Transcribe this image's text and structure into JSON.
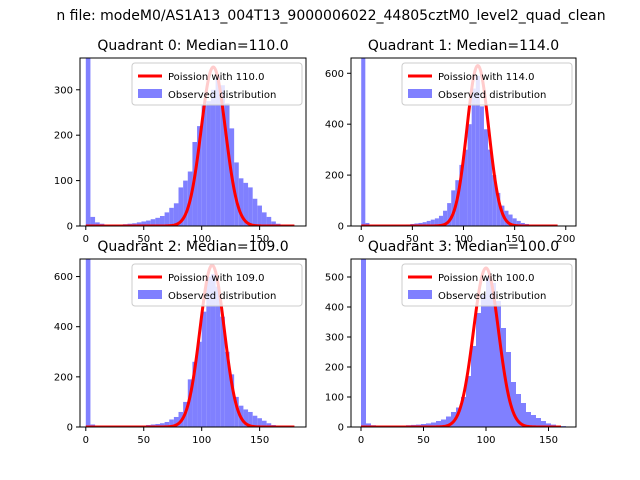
{
  "figure": {
    "suptitle": "n file: modeM0/AS1A13_004T13_9000006022_44805cztM0_level2_quad_clean"
  },
  "colors": {
    "poisson_line": "#ff0000",
    "histogram": "#8080ff",
    "axes": "#000000",
    "legend_border": "#cccccc"
  },
  "chart_data": [
    {
      "type": "bar",
      "title": "Quadrant 0: Median=110.0",
      "legend": [
        "Poission with 110.0",
        "Observed distribution"
      ],
      "legend_position": "top-right",
      "xlim": [
        -5,
        190
      ],
      "ylim": [
        0,
        370
      ],
      "xticks": [
        0,
        50,
        100,
        150
      ],
      "yticks": [
        0,
        100,
        200,
        300
      ],
      "poisson_mean": 110.0,
      "poisson_peak": 350,
      "hist_x": [
        0,
        4,
        8,
        12,
        16,
        20,
        24,
        28,
        32,
        36,
        40,
        44,
        48,
        52,
        56,
        60,
        64,
        68,
        72,
        76,
        80,
        84,
        88,
        92,
        96,
        100,
        104,
        108,
        112,
        116,
        120,
        124,
        128,
        132,
        136,
        140,
        144,
        148,
        152,
        156,
        160,
        164,
        168,
        172,
        176,
        180
      ],
      "hist_y": [
        370,
        20,
        8,
        5,
        3,
        3,
        3,
        3,
        4,
        5,
        6,
        8,
        10,
        12,
        15,
        18,
        22,
        30,
        40,
        50,
        85,
        100,
        120,
        185,
        220,
        265,
        275,
        300,
        330,
        310,
        270,
        215,
        140,
        105,
        95,
        85,
        60,
        45,
        30,
        20,
        10,
        5,
        3,
        2,
        1,
        1
      ]
    },
    {
      "type": "bar",
      "title": "Quadrant 1: Median=114.0",
      "legend": [
        "Poission with 114.0",
        "Observed distribution"
      ],
      "legend_position": "top-right",
      "xlim": [
        -10,
        210
      ],
      "ylim": [
        0,
        660
      ],
      "xticks": [
        0,
        50,
        100,
        150,
        200
      ],
      "yticks": [
        0,
        200,
        400,
        600
      ],
      "poisson_mean": 114.0,
      "poisson_peak": 630,
      "hist_x": [
        0,
        4,
        8,
        12,
        16,
        20,
        24,
        28,
        32,
        36,
        40,
        44,
        48,
        52,
        56,
        60,
        64,
        68,
        72,
        76,
        80,
        84,
        88,
        92,
        96,
        100,
        104,
        108,
        112,
        116,
        120,
        124,
        128,
        132,
        136,
        140,
        144,
        148,
        152,
        156,
        160,
        164,
        168,
        172,
        176,
        180,
        184,
        188,
        192
      ],
      "hist_y": [
        660,
        12,
        5,
        3,
        2,
        2,
        2,
        2,
        3,
        4,
        5,
        6,
        8,
        10,
        12,
        15,
        20,
        25,
        30,
        40,
        60,
        90,
        140,
        180,
        240,
        300,
        400,
        540,
        590,
        470,
        380,
        300,
        200,
        130,
        80,
        60,
        45,
        30,
        20,
        12,
        8,
        5,
        3,
        2,
        2,
        1,
        1,
        1,
        1
      ]
    },
    {
      "type": "bar",
      "title": "Quadrant 2: Median=109.0",
      "legend": [
        "Poission with 109.0",
        "Observed distribution"
      ],
      "legend_position": "top-right",
      "xlim": [
        -5,
        190
      ],
      "ylim": [
        0,
        670
      ],
      "xticks": [
        0,
        50,
        100,
        150
      ],
      "yticks": [
        0,
        200,
        400,
        600
      ],
      "poisson_mean": 109.0,
      "poisson_peak": 645,
      "hist_x": [
        0,
        4,
        8,
        12,
        16,
        20,
        24,
        28,
        32,
        36,
        40,
        44,
        48,
        52,
        56,
        60,
        64,
        68,
        72,
        76,
        80,
        84,
        88,
        92,
        96,
        100,
        104,
        108,
        112,
        116,
        120,
        124,
        128,
        132,
        136,
        140,
        144,
        148,
        152,
        156,
        160,
        164,
        168,
        172,
        176,
        180
      ],
      "hist_y": [
        670,
        10,
        5,
        3,
        2,
        2,
        2,
        2,
        3,
        3,
        4,
        5,
        6,
        8,
        10,
        12,
        15,
        20,
        30,
        40,
        60,
        100,
        190,
        260,
        340,
        460,
        600,
        610,
        560,
        440,
        300,
        210,
        120,
        85,
        70,
        60,
        45,
        35,
        25,
        15,
        8,
        5,
        3,
        2,
        1,
        1
      ]
    },
    {
      "type": "bar",
      "title": "Quadrant 3: Median=100.0",
      "legend": [
        "Poission with 100.0",
        "Observed distribution"
      ],
      "legend_position": "top-right",
      "xlim": [
        -8,
        172
      ],
      "ylim": [
        0,
        560
      ],
      "xticks": [
        0,
        50,
        100,
        150
      ],
      "yticks": [
        0,
        100,
        200,
        300,
        400,
        500
      ],
      "poisson_mean": 100.0,
      "poisson_peak": 530,
      "hist_x": [
        0,
        4,
        8,
        12,
        16,
        20,
        24,
        28,
        32,
        36,
        40,
        44,
        48,
        52,
        56,
        60,
        64,
        68,
        72,
        76,
        80,
        84,
        88,
        92,
        96,
        100,
        104,
        108,
        112,
        116,
        120,
        124,
        128,
        132,
        136,
        140,
        144,
        148,
        152,
        156,
        160
      ],
      "hist_y": [
        560,
        12,
        6,
        4,
        3,
        3,
        3,
        4,
        5,
        6,
        7,
        8,
        10,
        12,
        15,
        20,
        25,
        35,
        50,
        65,
        100,
        170,
        270,
        380,
        440,
        500,
        480,
        420,
        330,
        250,
        150,
        110,
        80,
        50,
        40,
        30,
        20,
        12,
        8,
        5,
        3
      ]
    }
  ]
}
